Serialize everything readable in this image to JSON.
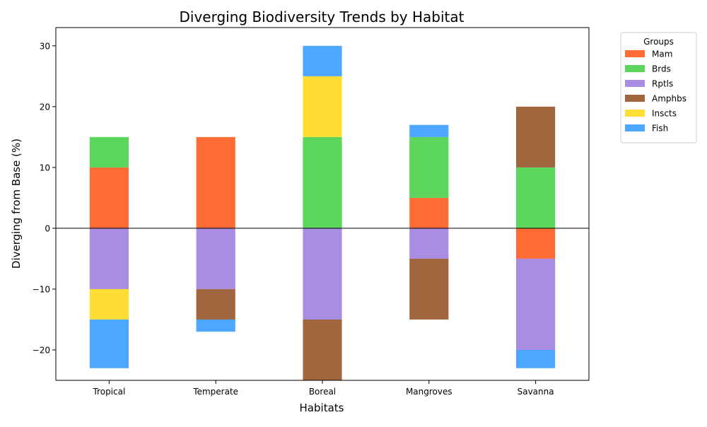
{
  "chart_data": {
    "type": "bar",
    "stacked": true,
    "diverging": true,
    "title": "Diverging Biodiversity Trends by Habitat",
    "xlabel": "Habitats",
    "ylabel": "Diverging from Base (%)",
    "categories": [
      "Tropical",
      "Temperate",
      "Boreal",
      "Mangroves",
      "Savanna"
    ],
    "ylim": [
      -25,
      33
    ],
    "yticks": [
      -20,
      -10,
      0,
      10,
      20,
      30
    ],
    "grid": false,
    "legend": {
      "title": "Groups",
      "placement": "outside-top-right"
    },
    "series": [
      {
        "name": "Mam",
        "color": "#ff6b35",
        "values": [
          10,
          15,
          0,
          5,
          -5
        ]
      },
      {
        "name": "Brds",
        "color": "#5cd65c",
        "values": [
          5,
          0,
          15,
          10,
          10
        ]
      },
      {
        "name": "Rptls",
        "color": "#a98de3",
        "values": [
          -10,
          -10,
          -15,
          -5,
          -15
        ]
      },
      {
        "name": "Amphbs",
        "color": "#a0673f",
        "values": [
          0,
          -5,
          -10,
          -10,
          10
        ]
      },
      {
        "name": "Inscts",
        "color": "#ffdd33",
        "values": [
          -5,
          0,
          10,
          0,
          0
        ]
      },
      {
        "name": "Fish",
        "color": "#4da6ff",
        "values": [
          -8,
          -2,
          5,
          2,
          -3
        ]
      }
    ]
  }
}
